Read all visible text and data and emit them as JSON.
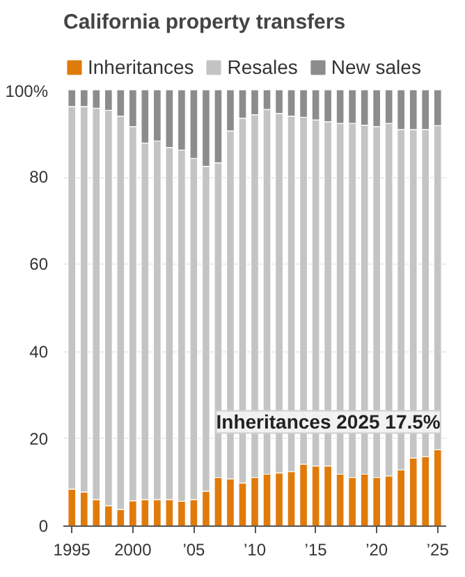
{
  "chart_data": {
    "type": "bar",
    "stacked": true,
    "title": "California property transfers",
    "x": [
      1995,
      1996,
      1997,
      1998,
      1999,
      2000,
      2001,
      2002,
      2003,
      2004,
      2005,
      2006,
      2007,
      2008,
      2009,
      2010,
      2011,
      2012,
      2013,
      2014,
      2015,
      2016,
      2017,
      2018,
      2019,
      2020,
      2021,
      2022,
      2023,
      2024,
      2025
    ],
    "series": [
      {
        "name": "Inheritances",
        "color": "#e07b0b",
        "values": [
          8.5,
          7.8,
          6.1,
          4.7,
          3.8,
          5.8,
          6.1,
          6.1,
          6.1,
          5.7,
          6.1,
          8.0,
          11.1,
          10.8,
          9.9,
          11.1,
          11.9,
          12.2,
          12.5,
          14.2,
          13.8,
          13.8,
          11.9,
          11.1,
          11.9,
          11.1,
          11.5,
          12.9,
          15.6,
          15.9,
          17.5
        ]
      },
      {
        "name": "Resales",
        "color": "#c4c4c4",
        "values": [
          87.7,
          88.4,
          89.7,
          90.6,
          90.2,
          85.8,
          81.7,
          82.2,
          80.7,
          80.5,
          78.2,
          74.5,
          72.2,
          79.8,
          83.6,
          83.2,
          83.6,
          82.4,
          81.5,
          79.5,
          79.3,
          78.9,
          80.4,
          81.2,
          80.0,
          80.5,
          80.8,
          78.0,
          75.3,
          75.0,
          74.3
        ]
      },
      {
        "name": "New sales",
        "color": "#8c8c8c",
        "values": [
          3.8,
          3.8,
          4.2,
          4.7,
          6.0,
          8.4,
          12.2,
          11.7,
          13.2,
          13.8,
          15.7,
          17.5,
          16.7,
          9.4,
          6.5,
          5.7,
          4.5,
          5.4,
          6.0,
          6.3,
          6.9,
          7.3,
          7.7,
          7.7,
          8.1,
          8.4,
          7.7,
          9.1,
          9.1,
          9.1,
          8.2
        ]
      }
    ],
    "xlim": [
      1994.3,
      2025.7
    ],
    "xticks": [
      1995,
      2000,
      {
        "value": 2005,
        "label": "’05"
      },
      {
        "value": 2010,
        "label": "’10"
      },
      {
        "value": 2015,
        "label": "’15"
      },
      {
        "value": 2020,
        "label": "’20"
      },
      {
        "value": 2025,
        "label": "’25"
      }
    ],
    "ylim": [
      0,
      100
    ],
    "yticks": [
      0,
      20,
      40,
      60,
      80,
      {
        "value": 100,
        "label": "100%"
      }
    ],
    "grid": "y",
    "legend": "top",
    "annotations": [
      {
        "text": "Inheritances 2025 17.5%",
        "x": 2025,
        "y": 17.5
      }
    ]
  }
}
